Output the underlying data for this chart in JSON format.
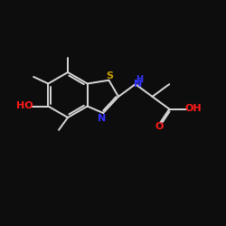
{
  "background_color": "#0d0d0d",
  "bond_color": "#d8d8d8",
  "S_color": "#c8a000",
  "N_color": "#3333ff",
  "O_color": "#ff1a1a",
  "label_S": "S",
  "label_N": "N",
  "label_NH": "H\nN",
  "label_HO": "HO",
  "label_O": "O",
  "label_OH": "OH",
  "figsize": [
    2.5,
    2.5
  ],
  "dpi": 100
}
